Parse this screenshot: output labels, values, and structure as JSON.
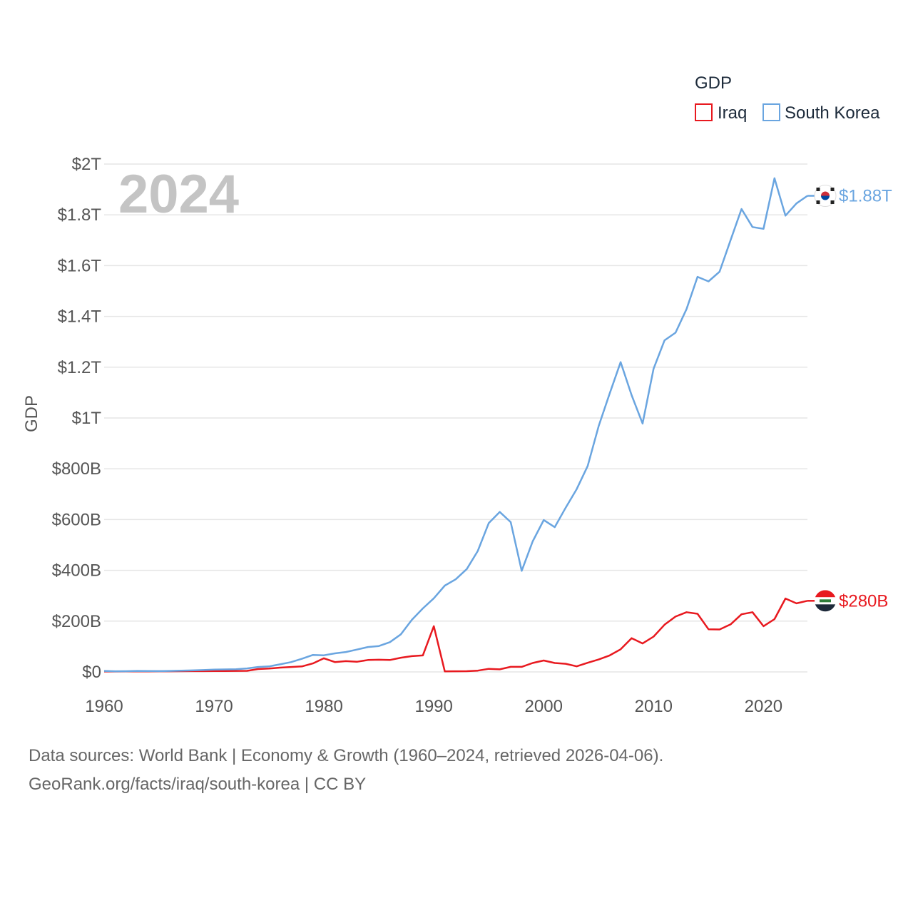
{
  "chart_data": {
    "type": "line",
    "title": "GDP",
    "year_label": "2024",
    "ylabel": "GDP",
    "xlabel": "",
    "x": [
      1960,
      1961,
      1962,
      1963,
      1964,
      1965,
      1966,
      1967,
      1968,
      1969,
      1970,
      1971,
      1972,
      1973,
      1974,
      1975,
      1976,
      1977,
      1978,
      1979,
      1980,
      1981,
      1982,
      1983,
      1984,
      1985,
      1986,
      1987,
      1988,
      1989,
      1990,
      1991,
      1992,
      1993,
      1994,
      1995,
      1996,
      1997,
      1998,
      1999,
      2000,
      2001,
      2002,
      2003,
      2004,
      2005,
      2006,
      2007,
      2008,
      2009,
      2010,
      2011,
      2012,
      2013,
      2014,
      2015,
      2016,
      2017,
      2018,
      2019,
      2020,
      2021,
      2022,
      2023,
      2024
    ],
    "xlim": [
      1960,
      2024
    ],
    "ylim": [
      0,
      2000
    ],
    "y_unit": "billions USD",
    "x_ticks": [
      1960,
      1970,
      1980,
      1990,
      2000,
      2010,
      2020
    ],
    "y_ticks": [
      0,
      200,
      400,
      600,
      800,
      1000,
      1200,
      1400,
      1600,
      1800,
      2000
    ],
    "y_tick_labels": [
      "$0",
      "$200B",
      "$400B",
      "$600B",
      "$800B",
      "$1T",
      "$1.2T",
      "$1.4T",
      "$1.6T",
      "$1.8T",
      "$2T"
    ],
    "legend_placement": "top-right",
    "series": [
      {
        "name": "Iraq",
        "color": "#e8191f",
        "end_label": "$280B",
        "flag_icon": "iraq-flag-icon",
        "values": [
          1.7,
          1.8,
          2.0,
          2.1,
          2.2,
          2.4,
          2.6,
          2.8,
          3.0,
          3.2,
          3.3,
          3.7,
          3.9,
          4.1,
          11.1,
          13.3,
          16.9,
          19.4,
          21.7,
          33.4,
          53.7,
          38.7,
          42.5,
          40.0,
          47.0,
          48.0,
          47.0,
          56.0,
          62.0,
          65.0,
          180.0,
          2.0,
          2.5,
          2.8,
          5.0,
          12.0,
          10.0,
          20.0,
          20.0,
          35.0,
          45.0,
          35.0,
          32.0,
          22.0,
          36.0,
          49.0,
          65.0,
          89.0,
          133.0,
          112.0,
          139.0,
          186.0,
          218.0,
          235.0,
          229.0,
          168.0,
          167.0,
          187.0,
          227.0,
          235.0,
          180.0,
          208.0,
          289.0,
          270.0,
          280.0
        ]
      },
      {
        "name": "South Korea",
        "color": "#6aa5e0",
        "end_label": "$1.88T",
        "flag_icon": "south-korea-flag-icon",
        "values": [
          4.0,
          2.4,
          2.8,
          3.9,
          3.5,
          3.1,
          3.9,
          4.7,
          5.9,
          7.4,
          9.0,
          9.9,
          10.7,
          13.9,
          19.4,
          21.7,
          29.8,
          38.4,
          51.7,
          66.8,
          65.4,
          72.9,
          78.4,
          88.0,
          98.0,
          102.0,
          117.0,
          148.0,
          205.0,
          250.0,
          290.0,
          340.0,
          365.0,
          405.0,
          476.0,
          586.0,
          630.0,
          590.0,
          398.0,
          514.0,
          598.0,
          570.0,
          647.0,
          720.0,
          811.0,
          968.0,
          1096.0,
          1220.0,
          1090.0,
          978.0,
          1194.0,
          1306.0,
          1336.0,
          1429.0,
          1556.0,
          1538.0,
          1576.0,
          1700.0,
          1823.0,
          1752.0,
          1745.0,
          1944.0,
          1797.0,
          1845.0,
          1875.0
        ]
      }
    ]
  },
  "legend": {
    "title": "GDP",
    "items": [
      "Iraq",
      "South Korea"
    ]
  },
  "footer": {
    "line1": "Data sources: World Bank | Economy & Growth (1960–2024, retrieved 2026-04-06).",
    "line2": "GeoRank.org/facts/iraq/south-korea | CC BY"
  }
}
